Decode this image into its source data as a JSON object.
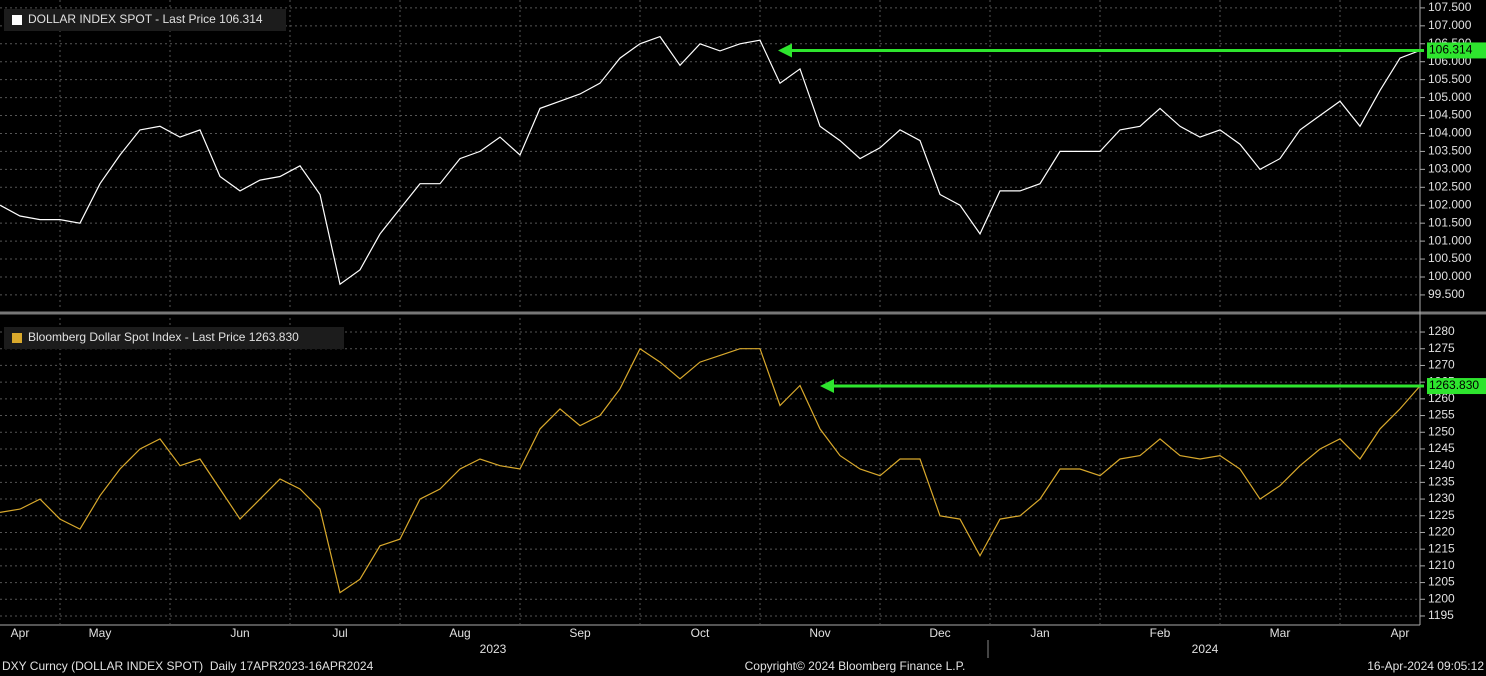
{
  "chart_data": [
    {
      "type": "line",
      "title": "DOLLAR INDEX SPOT - Last Price 106.314",
      "series": [
        {
          "name": "DOLLAR INDEX SPOT",
          "color": "#ffffff",
          "values": [
            102.0,
            101.7,
            101.6,
            101.6,
            101.5,
            102.6,
            103.4,
            104.1,
            104.2,
            103.9,
            104.1,
            102.8,
            102.4,
            102.7,
            102.8,
            103.1,
            102.3,
            99.8,
            100.2,
            101.2,
            101.9,
            102.6,
            102.6,
            103.3,
            103.5,
            103.9,
            103.4,
            104.7,
            104.9,
            105.1,
            105.4,
            106.1,
            106.5,
            106.7,
            105.9,
            106.5,
            106.3,
            106.5,
            106.6,
            105.4,
            105.8,
            104.2,
            103.8,
            103.3,
            103.6,
            104.1,
            103.8,
            102.3,
            102.0,
            101.2,
            102.4,
            102.4,
            102.6,
            103.5,
            103.5,
            103.5,
            104.1,
            104.2,
            104.7,
            104.2,
            103.9,
            104.1,
            103.7,
            103.0,
            103.3,
            104.1,
            104.5,
            104.9,
            104.2,
            105.2,
            106.1,
            106.314
          ]
        }
      ],
      "annotations": [
        {
          "label": "106.314"
        }
      ],
      "ylim": [
        99.08,
        107.72
      ],
      "yticks": [
        {
          "value": 99.5,
          "label": "99.500"
        },
        {
          "value": 100,
          "label": "100.000"
        },
        {
          "value": 100.5,
          "label": "100.500"
        },
        {
          "value": 101,
          "label": "101.000"
        },
        {
          "value": 101.5,
          "label": "101.500"
        },
        {
          "value": 102,
          "label": "102.000"
        },
        {
          "value": 102.5,
          "label": "102.500"
        },
        {
          "value": 103,
          "label": "103.000"
        },
        {
          "value": 103.5,
          "label": "103.500"
        },
        {
          "value": 104,
          "label": "104.000"
        },
        {
          "value": 104.5,
          "label": "104.500"
        },
        {
          "value": 105,
          "label": "105.000"
        },
        {
          "value": 105.5,
          "label": "105.500"
        },
        {
          "value": 106,
          "label": "106.000"
        },
        {
          "value": 106.5,
          "label": "106.500"
        },
        {
          "value": 107,
          "label": "107.000"
        },
        {
          "value": 107.5,
          "label": "107.500"
        }
      ],
      "grid": true
    },
    {
      "type": "line",
      "title": "Bloomberg Dollar Spot Index - Last Price 1263.830",
      "categories": [
        null,
        "Apr",
        null,
        null,
        null,
        "May",
        null,
        null,
        null,
        null,
        null,
        null,
        "Jun",
        null,
        null,
        null,
        null,
        "Jul",
        null,
        null,
        null,
        null,
        null,
        "Aug",
        null,
        null,
        null,
        null,
        null,
        "Sep",
        null,
        null,
        null,
        null,
        null,
        "Oct",
        null,
        null,
        null,
        null,
        null,
        "Nov",
        null,
        null,
        null,
        null,
        null,
        "Dec",
        null,
        null,
        null,
        null,
        "Jan",
        null,
        null,
        null,
        null,
        null,
        "Feb",
        null,
        null,
        null,
        null,
        null,
        "Mar",
        null,
        null,
        null,
        null,
        null,
        "Apr",
        null
      ],
      "year_labels": [
        "2023",
        "2024"
      ],
      "series": [
        {
          "name": "Bloomberg Dollar Spot Index",
          "color": "#d9a92c",
          "values": [
            1226,
            1227,
            1230,
            1224,
            1221,
            1231,
            1239,
            1245,
            1248,
            1240,
            1242,
            1233,
            1224,
            1230,
            1236,
            1233,
            1227,
            1202,
            1206,
            1216,
            1218,
            1230,
            1233,
            1239,
            1242,
            1240,
            1239,
            1251,
            1257,
            1252,
            1255,
            1263,
            1275,
            1271,
            1266,
            1271,
            1273,
            1275,
            1275,
            1258,
            1264,
            1251,
            1243,
            1239,
            1237,
            1242,
            1242,
            1225,
            1224,
            1213,
            1224,
            1225,
            1230,
            1239,
            1239,
            1237,
            1242,
            1243,
            1248,
            1243,
            1242,
            1243,
            1239,
            1230,
            1234,
            1240,
            1245,
            1248,
            1242,
            1251,
            1257,
            1263.83
          ]
        }
      ],
      "annotations": [
        {
          "label": "1263.830"
        }
      ],
      "ylim": [
        1192.3,
        1284.2
      ],
      "yticks": [
        1195,
        1200,
        1205,
        1210,
        1215,
        1220,
        1225,
        1230,
        1235,
        1240,
        1245,
        1250,
        1255,
        1260,
        1265,
        1270,
        1275,
        1280
      ],
      "grid": true
    }
  ],
  "footer": {
    "left": "DXY Curncy (DOLLAR INDEX SPOT)  Daily 17APR2023-16APR2024",
    "center": "Copyright© 2024 Bloomberg Finance L.P.",
    "right": "16-Apr-2024 09:05:12"
  }
}
